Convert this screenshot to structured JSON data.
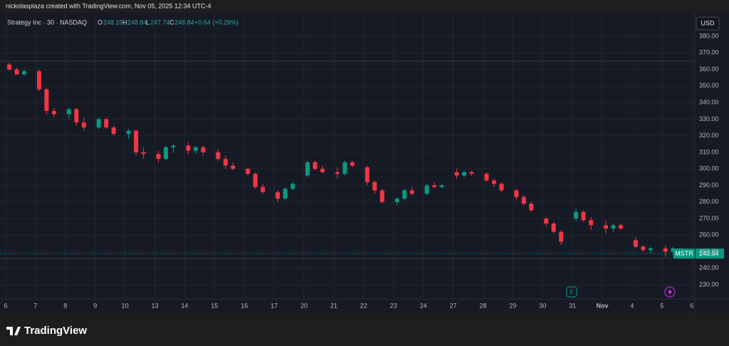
{
  "header": "nickolasplaza created with TradingView.com, Nov 05, 2025 12:34 UTC-4",
  "legend": {
    "symbol": "Strategy Inc · 30 · NASDAQ",
    "open_label": "O",
    "open": 248.15,
    "high_label": "H",
    "high": 248.84,
    "low_label": "L",
    "low": 247.74,
    "close_label": "C",
    "close": 248.84,
    "change": "+0.64 (+0.26%)"
  },
  "currency": "USD",
  "ticker": "MSTR",
  "earnings_marker": "E",
  "brand": "TradingView",
  "chart_data": {
    "type": "candlestick",
    "up_color": "#089981",
    "down_color": "#f23645",
    "grid": true,
    "last_price": 248.84,
    "ylim": [
      225,
      385
    ],
    "yticks": [
      {
        "value": 230,
        "label": "230.00"
      },
      {
        "value": 240,
        "label": "240.00"
      },
      {
        "value": 250,
        "label": "250.00"
      },
      {
        "value": 260,
        "label": "260.00"
      },
      {
        "value": 270,
        "label": "270.00"
      },
      {
        "value": 280,
        "label": "280.00"
      },
      {
        "value": 290,
        "label": "290.00"
      },
      {
        "value": 300,
        "label": "300.00"
      },
      {
        "value": 310,
        "label": "310.00"
      },
      {
        "value": 320,
        "label": "320.00"
      },
      {
        "value": 330,
        "label": "330.00"
      },
      {
        "value": 340,
        "label": "340.00"
      },
      {
        "value": 350,
        "label": "350.00"
      },
      {
        "value": 360,
        "label": "360.00"
      },
      {
        "value": 370,
        "label": "370.00"
      },
      {
        "value": 380,
        "label": "380.00"
      }
    ],
    "days": [
      {
        "label": "6",
        "candles": [
          [
            363,
            364,
            359,
            360
          ],
          [
            360,
            361,
            357,
            357
          ],
          [
            357,
            360,
            356,
            359
          ]
        ]
      },
      {
        "label": "7",
        "candles": [
          [
            359,
            360,
            347,
            348
          ],
          [
            348,
            349,
            333,
            335
          ],
          [
            335,
            337,
            331,
            333
          ]
        ]
      },
      {
        "label": "8",
        "candles": [
          [
            333,
            337,
            330,
            336
          ],
          [
            336,
            337,
            326,
            328
          ],
          [
            328,
            331,
            323,
            325
          ]
        ]
      },
      {
        "label": "9",
        "candles": [
          [
            325,
            331,
            324,
            330
          ],
          [
            330,
            331,
            324,
            325
          ],
          [
            325,
            326,
            320,
            321
          ]
        ]
      },
      {
        "label": "10",
        "candles": [
          [
            321,
            324,
            318,
            323
          ],
          [
            323,
            324,
            308,
            310
          ],
          [
            310,
            313,
            306,
            309
          ]
        ]
      },
      {
        "label": "13",
        "candles": [
          [
            309,
            311,
            304,
            306
          ],
          [
            306,
            314,
            305,
            313
          ],
          [
            313,
            315,
            310,
            314
          ]
        ]
      },
      {
        "label": "14",
        "candles": [
          [
            314,
            316,
            309,
            311
          ],
          [
            311,
            314,
            309,
            313
          ],
          [
            313,
            314,
            308,
            310
          ]
        ]
      },
      {
        "label": "15",
        "candles": [
          [
            310,
            312,
            305,
            306
          ],
          [
            306,
            308,
            300,
            302
          ],
          [
            302,
            304,
            299,
            300
          ]
        ]
      },
      {
        "label": "16",
        "candles": [
          [
            300,
            301,
            296,
            297
          ],
          [
            297,
            298,
            288,
            289
          ],
          [
            289,
            291,
            285,
            286
          ]
        ]
      },
      {
        "label": "17",
        "candles": [
          [
            286,
            287,
            280,
            282
          ],
          [
            282,
            289,
            281,
            288
          ],
          [
            288,
            292,
            287,
            291
          ]
        ]
      },
      {
        "label": "20",
        "candles": [
          [
            296,
            305,
            295,
            304
          ],
          [
            304,
            305,
            299,
            300
          ],
          [
            300,
            302,
            297,
            298
          ]
        ]
      },
      {
        "label": "21",
        "candles": [
          [
            298,
            301,
            294,
            297
          ],
          [
            297,
            305,
            296,
            304
          ],
          [
            304,
            305,
            301,
            302
          ]
        ]
      },
      {
        "label": "22",
        "candles": [
          [
            301,
            302,
            290,
            292
          ],
          [
            292,
            293,
            285,
            287
          ],
          [
            287,
            288,
            279,
            280
          ]
        ]
      },
      {
        "label": "23",
        "candles": [
          [
            280,
            283,
            278,
            282
          ],
          [
            282,
            288,
            281,
            287
          ],
          [
            287,
            289,
            284,
            285
          ]
        ]
      },
      {
        "label": "24",
        "candles": [
          [
            285,
            291,
            284,
            290
          ],
          [
            290,
            292,
            288,
            289
          ],
          [
            289,
            291,
            288,
            290
          ]
        ]
      },
      {
        "label": "27",
        "candles": [
          [
            298,
            300,
            294,
            296
          ],
          [
            296,
            299,
            295,
            298
          ],
          [
            298,
            299,
            296,
            297
          ]
        ]
      },
      {
        "label": "28",
        "candles": [
          [
            297,
            298,
            292,
            293
          ],
          [
            293,
            294,
            289,
            291
          ],
          [
            291,
            292,
            286,
            287
          ]
        ]
      },
      {
        "label": "29",
        "candles": [
          [
            287,
            288,
            281,
            283
          ],
          [
            283,
            284,
            278,
            279
          ],
          [
            279,
            280,
            274,
            275
          ]
        ]
      },
      {
        "label": "30",
        "candles": [
          [
            270,
            271,
            265,
            267
          ],
          [
            267,
            268,
            261,
            262
          ],
          [
            262,
            263,
            254,
            256
          ]
        ]
      },
      {
        "label": "31",
        "candles": [
          [
            270,
            276,
            268,
            274
          ],
          [
            274,
            275,
            268,
            269
          ],
          [
            269,
            271,
            263,
            266
          ]
        ]
      },
      {
        "label": "Nov",
        "candles": [
          [
            266,
            269,
            261,
            264
          ],
          [
            264,
            267,
            262,
            266
          ],
          [
            266,
            267,
            263,
            264
          ]
        ]
      },
      {
        "label": "4",
        "candles": [
          [
            257,
            259,
            252,
            253
          ],
          [
            253,
            254,
            250,
            251
          ],
          [
            251,
            253,
            249,
            252
          ]
        ]
      },
      {
        "label": "5",
        "candles": [
          [
            252,
            254,
            247,
            250
          ],
          [
            250,
            253,
            248,
            252
          ],
          [
            252,
            252,
            247.74,
            248.84
          ]
        ]
      },
      {
        "label": "6",
        "candles": []
      }
    ]
  }
}
